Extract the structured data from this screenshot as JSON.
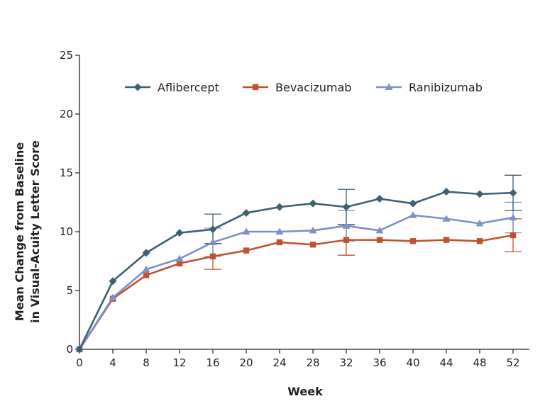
{
  "chart_data": {
    "type": "line",
    "title": "",
    "xlabel": "Week",
    "ylabel": [
      "Mean Change from Baseline",
      "in Visual-Acuity Letter Score"
    ],
    "x": [
      0,
      4,
      8,
      12,
      16,
      20,
      24,
      28,
      32,
      36,
      40,
      44,
      48,
      52
    ],
    "xlim": [
      0,
      54
    ],
    "ylim": [
      0,
      25
    ],
    "xticks": [
      0,
      4,
      8,
      12,
      16,
      20,
      24,
      28,
      32,
      36,
      40,
      44,
      48,
      52
    ],
    "yticks": [
      0,
      5,
      10,
      15,
      20,
      25
    ],
    "grid": false,
    "legend_position": "top",
    "series": [
      {
        "name": "Aflibercept",
        "color": "#3d6072",
        "marker": "diamond",
        "values": [
          0,
          5.8,
          8.2,
          9.9,
          10.2,
          11.6,
          12.1,
          12.4,
          12.1,
          12.8,
          12.4,
          13.4,
          13.2,
          13.3
        ],
        "error_bars": [
          {
            "x": 16,
            "low": 9.0,
            "high": 11.5
          },
          {
            "x": 32,
            "low": 10.6,
            "high": 13.6
          },
          {
            "x": 52,
            "low": 11.8,
            "high": 14.8
          }
        ]
      },
      {
        "name": "Bevacizumab",
        "color": "#c0522e",
        "marker": "square",
        "values": [
          0,
          4.3,
          6.3,
          7.3,
          7.9,
          8.4,
          9.1,
          8.9,
          9.3,
          9.3,
          9.2,
          9.3,
          9.2,
          9.7
        ],
        "error_bars": [
          {
            "x": 16,
            "low": 6.8,
            "high": 9.0
          },
          {
            "x": 32,
            "low": 8.0,
            "high": 10.6
          },
          {
            "x": 52,
            "low": 8.3,
            "high": 11.1
          }
        ]
      },
      {
        "name": "Ranibizumab",
        "color": "#7b91c8",
        "marker": "triangle",
        "values": [
          0,
          4.4,
          6.8,
          7.7,
          9.1,
          10.0,
          10.0,
          10.1,
          10.5,
          10.1,
          11.4,
          11.1,
          10.7,
          11.2
        ],
        "error_bars": [
          {
            "x": 16,
            "low": 7.9,
            "high": 10.3
          },
          {
            "x": 32,
            "low": 9.2,
            "high": 11.8
          },
          {
            "x": 52,
            "low": 9.9,
            "high": 12.5
          }
        ]
      }
    ]
  }
}
